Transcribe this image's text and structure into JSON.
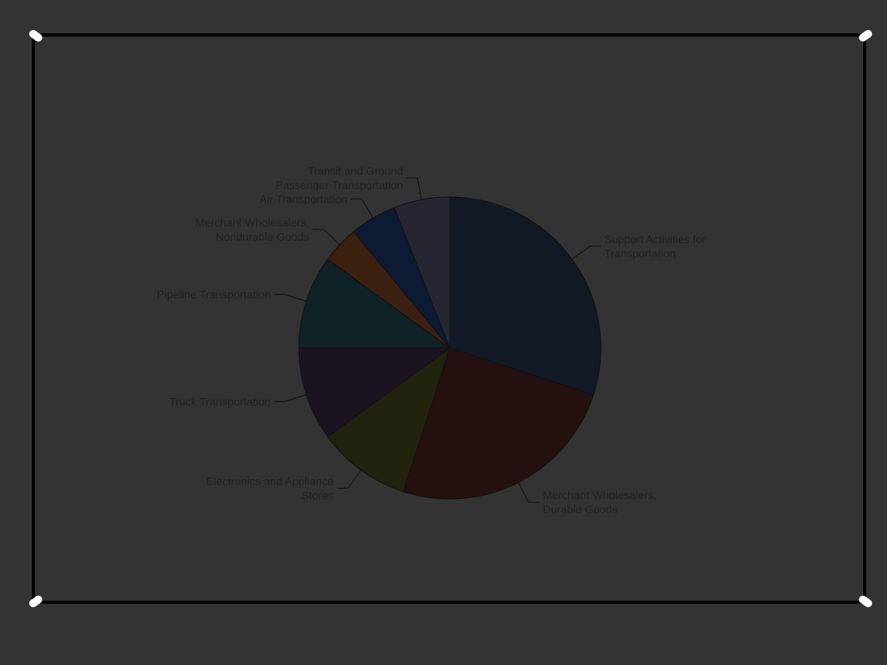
{
  "title": "",
  "footer": "",
  "colors": {
    "background": "#333333",
    "frame": "#000000",
    "label_text": "#222222",
    "leader_line": "#111111",
    "slice_border": "#111111",
    "slices": [
      "#111a24",
      "#24100f",
      "#22230f",
      "#1b1420",
      "#0f2226",
      "#3b2010",
      "#0c1a33",
      "#262632"
    ]
  },
  "chart_data": {
    "type": "pie",
    "title": "",
    "start": "top",
    "direction": "clockwise",
    "slices": [
      {
        "label": "Support Activities for Transportation",
        "lines": [
          "Support Activities for",
          "Transportation"
        ],
        "value": 30
      },
      {
        "label": "Merchant Wholesalers, Durable Goods",
        "lines": [
          "Merchant Wholesalers,",
          "Durable Goods"
        ],
        "value": 25
      },
      {
        "label": "Electronics and Appliance Stores",
        "lines": [
          "Electronics and Appliance",
          "Stores"
        ],
        "value": 10
      },
      {
        "label": "Truck Transportation",
        "lines": [
          "Truck Transportation"
        ],
        "value": 10
      },
      {
        "label": "Pipeline Transportation",
        "lines": [
          "Pipeline Transportation"
        ],
        "value": 10
      },
      {
        "label": "Merchant Wholesalers, Nondurable Goods",
        "lines": [
          "Merchant Wholesalers,",
          "Nondurable Goods"
        ],
        "value": 4
      },
      {
        "label": "Air Transportation",
        "lines": [
          "Air Transportation"
        ],
        "value": 5
      },
      {
        "label": "Transit and Ground Passenger Transportation",
        "lines": [
          "Transit and Ground",
          "Passenger Transportation"
        ],
        "value": 6
      }
    ]
  }
}
